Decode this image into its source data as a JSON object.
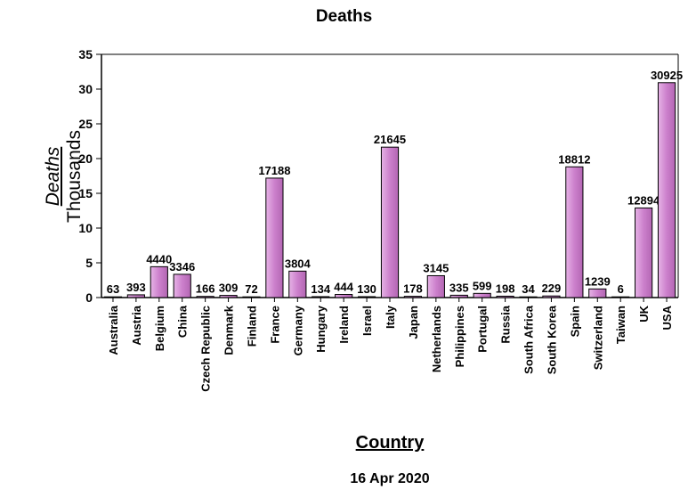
{
  "chart_data": {
    "type": "bar",
    "title": "Deaths",
    "xlabel": "Country",
    "ylabel": "Deaths",
    "ylabel_units": "Thousands",
    "date": "16 Apr 2020",
    "ylim": [
      0,
      35
    ],
    "yticks": [
      0,
      5,
      10,
      15,
      20,
      25,
      30,
      35
    ],
    "categories": [
      "Australia",
      "Austria",
      "Belgium",
      "China",
      "Czech Republic",
      "Denmark",
      "Finland",
      "France",
      "Germany",
      "Hungary",
      "Ireland",
      "Israel",
      "Italy",
      "Japan",
      "Netherlands",
      "Philippines",
      "Portugal",
      "Russia",
      "South Africa",
      "South Korea",
      "Spain",
      "Switzerland",
      "Taiwan",
      "UK",
      "USA"
    ],
    "values": [
      63,
      393,
      4440,
      3346,
      166,
      309,
      72,
      17188,
      3804,
      134,
      444,
      130,
      21645,
      178,
      3145,
      335,
      599,
      198,
      34,
      229,
      18812,
      1239,
      6,
      12894,
      30925
    ],
    "grid": false,
    "legend": "none",
    "colors": {
      "bar_light": "#e6b3e6",
      "bar_mid": "#cc80cc",
      "bar_dark": "#b366b3",
      "outline": "#000000"
    }
  }
}
